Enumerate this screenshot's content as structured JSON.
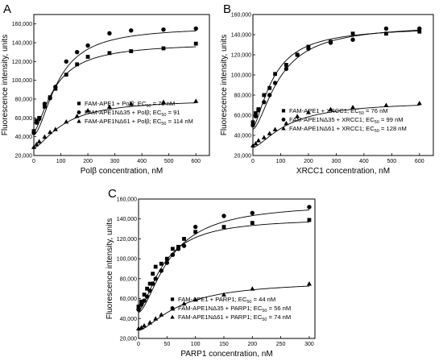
{
  "chart_data": [
    {
      "panel": "A",
      "type": "scatter",
      "xlabel": "Polβ concentration, nM",
      "ylabel": "Fluorescence intensity, units",
      "xlim": [
        0,
        650
      ],
      "ylim": [
        20000,
        170000
      ],
      "xticks": [
        0,
        100,
        200,
        300,
        400,
        500,
        600
      ],
      "yticks": [
        20000,
        40000,
        60000,
        80000,
        100000,
        120000,
        140000,
        160000
      ],
      "ytick_labels": [
        "20,000",
        "40,000",
        "60,000",
        "80,000",
        "100,000",
        "120,000",
        "140,000",
        "160,000"
      ],
      "legend_position": "bottom-right",
      "series": [
        {
          "name": "FAM-APE1 + Polβ; EC50 = 79 nM",
          "legend_parts": [
            "FAM-APE1 + Polβ; EC",
            "50",
            " = 79 nM"
          ],
          "marker": "square",
          "x": [
            0,
            10,
            20,
            40,
            60,
            80,
            120,
            160,
            200,
            280,
            360,
            480,
            600
          ],
          "y": [
            46000,
            57000,
            60000,
            72000,
            82000,
            91000,
            106000,
            117000,
            125000,
            129000,
            131000,
            134000,
            139000
          ],
          "fit": {
            "bottom": 45000,
            "top": 140000,
            "ec50": 79,
            "hill": 1.5
          }
        },
        {
          "name": "FAM-APE1NΔ35 + Polβ; EC50 = 91",
          "legend_parts": [
            "FAM-APE1NΔ35 + Polβ; EC",
            "50",
            " = 91"
          ],
          "marker": "circle",
          "x": [
            0,
            10,
            20,
            40,
            60,
            80,
            120,
            160,
            200,
            280,
            360,
            480,
            600
          ],
          "y": [
            44000,
            55000,
            59000,
            75000,
            81000,
            93000,
            120000,
            130000,
            137000,
            150000,
            153000,
            154000,
            155000
          ],
          "fit": {
            "bottom": 42000,
            "top": 157000,
            "ec50": 91,
            "hill": 1.7
          }
        },
        {
          "name": "FAM-APE1NΔ61 + Polβ; EC50 = 114 nM",
          "legend_parts": [
            "FAM-APE1NΔ61 + Polβ; EC",
            "50",
            " = 114 nM"
          ],
          "marker": "triangle",
          "x": [
            0,
            10,
            20,
            40,
            60,
            80,
            120,
            160,
            200,
            280,
            360,
            480,
            600
          ],
          "y": [
            29000,
            32000,
            35000,
            40000,
            45000,
            48000,
            56000,
            62000,
            68000,
            72000,
            75000,
            77000,
            78000
          ],
          "fit": {
            "bottom": 28000,
            "top": 80000,
            "ec50": 114,
            "hill": 1.5
          }
        }
      ]
    },
    {
      "panel": "B",
      "type": "scatter",
      "xlabel": "XRCC1 concentration, nM",
      "ylabel": "Fluorescence intensity, units",
      "xlim": [
        0,
        650
      ],
      "ylim": [
        20000,
        160000
      ],
      "xticks": [
        0,
        100,
        200,
        300,
        400,
        500,
        600
      ],
      "yticks": [
        20000,
        40000,
        60000,
        80000,
        100000,
        120000,
        140000,
        160000
      ],
      "ytick_labels": [
        "20,000",
        "40,000",
        "60,000",
        "80,000",
        "100,000",
        "120,000",
        "140,000",
        "160,000"
      ],
      "legend_position": "bottom-right",
      "series": [
        {
          "name": "FAM-APE1 + XRCC1; EC50 = 76 nM",
          "legend_parts": [
            "FAM-APE1 + XRCC1; EC",
            "50",
            " = 76 nM"
          ],
          "marker": "square",
          "x": [
            0,
            10,
            20,
            40,
            60,
            80,
            120,
            160,
            200,
            280,
            360,
            480,
            600
          ],
          "y": [
            53000,
            62000,
            66000,
            80000,
            87000,
            101000,
            110000,
            120000,
            128000,
            133000,
            141000,
            141000,
            143000
          ],
          "fit": {
            "bottom": 48000,
            "top": 148000,
            "ec50": 76,
            "hill": 1.5
          }
        },
        {
          "name": "FAM-APE1NΔ35 + XRCC1; EC50 = 99 nM",
          "legend_parts": [
            "FAM-APE1NΔ35 + XRCC1; EC",
            "50",
            " = 99 nM"
          ],
          "marker": "circle",
          "x": [
            0,
            10,
            20,
            40,
            60,
            80,
            120,
            160,
            200,
            280,
            360,
            480,
            600
          ],
          "y": [
            50000,
            59000,
            65000,
            73000,
            80000,
            92000,
            106000,
            120000,
            126000,
            132000,
            135000,
            146000,
            146000
          ],
          "fit": {
            "bottom": 46000,
            "top": 150000,
            "ec50": 99,
            "hill": 1.6
          }
        },
        {
          "name": "FAM-APE1NΔ61 + XRCC1; EC50 = 128 nM",
          "legend_parts": [
            "FAM-APE1NΔ61 + XRCC1; EC",
            "50",
            " = 128 nM"
          ],
          "marker": "triangle",
          "x": [
            0,
            10,
            20,
            40,
            60,
            80,
            120,
            160,
            200,
            280,
            360,
            480,
            600
          ],
          "y": [
            30000,
            32000,
            35000,
            38000,
            42000,
            46000,
            52000,
            59000,
            63000,
            66000,
            68000,
            70000,
            72000
          ],
          "fit": {
            "bottom": 28000,
            "top": 74000,
            "ec50": 128,
            "hill": 1.5
          }
        }
      ]
    },
    {
      "panel": "C",
      "type": "scatter",
      "xlabel": "PARP1 concentration, nM",
      "ylabel": "Fluorescence intensity, units",
      "xlim": [
        0,
        310
      ],
      "ylim": [
        20000,
        160000
      ],
      "xticks": [
        0,
        50,
        100,
        150,
        200,
        250,
        300
      ],
      "yticks": [
        20000,
        40000,
        60000,
        80000,
        100000,
        120000,
        140000,
        160000
      ],
      "ytick_labels": [
        "20,000",
        "40,000",
        "60,000",
        "80,000",
        "100,000",
        "120,000",
        "140,000",
        "160,000"
      ],
      "legend_position": "bottom-right",
      "series": [
        {
          "name": "FAM-APE1 + PARP1; EC50 = 44 nM",
          "legend_parts": [
            "FAM-APE1 + PARP1; EC",
            "50",
            " = 44 nM"
          ],
          "marker": "square",
          "x": [
            0,
            5,
            10,
            15,
            20,
            25,
            30,
            40,
            50,
            60,
            70,
            80,
            100,
            150,
            200,
            300
          ],
          "y": [
            52000,
            57000,
            64000,
            70000,
            75000,
            85000,
            92000,
            95000,
            100000,
            110000,
            112000,
            120000,
            127000,
            132000,
            136000,
            139000
          ],
          "fit": {
            "bottom": 48000,
            "top": 141000,
            "ec50": 44,
            "hill": 1.6
          }
        },
        {
          "name": "FAM-APE1NΔ35 + PARP1; EC50 = 56 nM",
          "legend_parts": [
            "FAM-APE1NΔ35 + PARP1; EC",
            "50",
            " = 56 nM"
          ],
          "marker": "circle",
          "x": [
            0,
            5,
            10,
            15,
            20,
            25,
            30,
            40,
            50,
            60,
            70,
            80,
            100,
            150,
            200,
            300
          ],
          "y": [
            49000,
            54000,
            58000,
            62000,
            68000,
            75000,
            80000,
            88000,
            96000,
            104000,
            110000,
            113000,
            132000,
            143000,
            146000,
            152000
          ],
          "fit": {
            "bottom": 46000,
            "top": 156000,
            "ec50": 56,
            "hill": 1.6
          }
        },
        {
          "name": "FAM-APE1NΔ61 + PARP1; EC50 = 74 nM",
          "legend_parts": [
            "FAM-APE1NΔ61 + PARP1; EC",
            "50",
            " = 74 nM"
          ],
          "marker": "triangle",
          "x": [
            0,
            5,
            10,
            20,
            30,
            40,
            60,
            80,
            100,
            150,
            200,
            300
          ],
          "y": [
            30000,
            31000,
            33000,
            36000,
            40000,
            44000,
            50000,
            55000,
            59000,
            64000,
            70000,
            75000
          ],
          "fit": {
            "bottom": 28000,
            "top": 78000,
            "ec50": 74,
            "hill": 1.5
          }
        }
      ]
    }
  ]
}
